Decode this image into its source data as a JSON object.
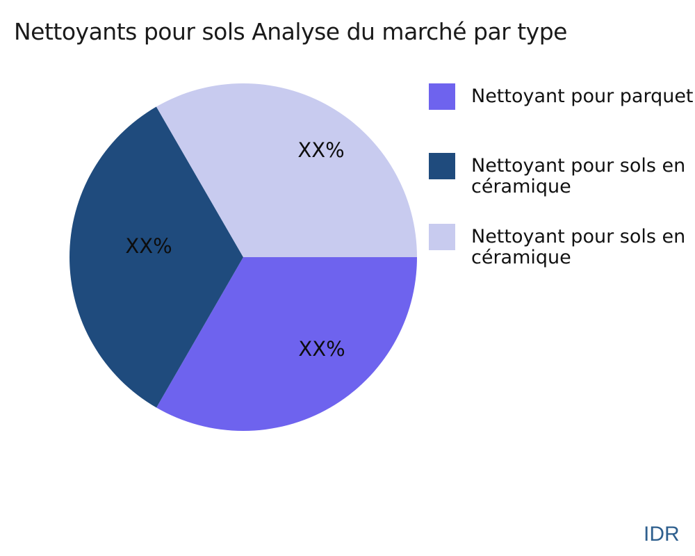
{
  "title": "Nettoyants pour sols Analyse du marché par type",
  "watermark": "IDR",
  "colors": {
    "slice_purple": "#6e63ee",
    "slice_navy": "#1f4b7d",
    "slice_lavender": "#c8cbef",
    "watermark_blue": "#2e5f8e",
    "background": "#ffffff"
  },
  "chart_data": {
    "type": "pie",
    "title": "Nettoyants pour sols Analyse du marché par type",
    "start_angle": 0,
    "direction": "clockwise",
    "legend_position": "right",
    "series": [
      {
        "name": "Nettoyant pour parquet",
        "value": 33.33,
        "display_label": "XX%",
        "color": "#6e63ee",
        "legend_lines": [
          "Nettoyant pour parquet",
          ""
        ]
      },
      {
        "name": "Nettoyant pour sols en céramique",
        "value": 33.33,
        "display_label": "XX%",
        "color": "#1f4b7d",
        "legend_lines": [
          "Nettoyant pour sols en",
          "céramique"
        ]
      },
      {
        "name": "Nettoyant pour sols en céramique",
        "value": 33.34,
        "display_label": "XX%",
        "color": "#c8cbef",
        "legend_lines": [
          "Nettoyant pour sols en",
          "céramique"
        ]
      }
    ]
  }
}
